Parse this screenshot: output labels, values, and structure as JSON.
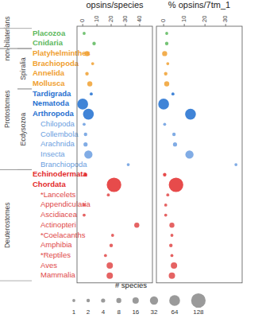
{
  "chart_data": {
    "type": "dot",
    "orientation": "horizontal",
    "categories": [
      "Placozoa",
      "Cnidaria",
      "Platyhelminthes",
      "Brachiopoda",
      "Annelida",
      "Mollusca",
      "Tardigrada",
      "Nematoda",
      "Arthropoda",
      "Chilopoda",
      "Collembola",
      "Arachnida",
      "Insecta",
      "Branchiopoda",
      "Echinodermata",
      "Chordata",
      "*Lancelets",
      "Appendicularia",
      "Ascidiacea",
      "Actinopteri",
      "*Coelacanths",
      "Amphibia",
      "*Reptiles",
      "Aves",
      "Mammalia"
    ],
    "colors": [
      "#5cb85c",
      "#5cb85c",
      "#f0a030",
      "#f0a030",
      "#f0a030",
      "#f0a030",
      "#1f6fd0",
      "#1f6fd0",
      "#1f6fd0",
      "#6b9ee0",
      "#6b9ee0",
      "#6b9ee0",
      "#6b9ee0",
      "#6b9ee0",
      "#e32b2b",
      "#e32b2b",
      "#e04848",
      "#e04848",
      "#e04848",
      "#e04848",
      "#e04848",
      "#e04848",
      "#e04848",
      "#e04848",
      "#e04848"
    ],
    "sizes": [
      1,
      2,
      8,
      1,
      2,
      8,
      1,
      64,
      64,
      1,
      2,
      4,
      32,
      1,
      2,
      128,
      1,
      1,
      1,
      8,
      1,
      2,
      1,
      16,
      16
    ],
    "groups": [
      {
        "name": "non-bilaterians",
        "first": "Placozoa",
        "last": "Cnidaria",
        "color": "#5cb85c"
      },
      {
        "name": "Spiralia",
        "first": "Platyhelminthes",
        "last": "Mollusca",
        "color": "#f0a030"
      },
      {
        "name": "Ecdysozoa",
        "first": "Tardigrada",
        "last": "Branchiopoda",
        "color": "#1f6fd0"
      },
      {
        "name": "Protostomes",
        "first": "Platyhelminthes",
        "last": "Branchiopoda",
        "color": "#1f6fd0"
      },
      {
        "name": "Deuterostomes",
        "first": "Echinodermata",
        "last": "Mammalia",
        "color": "#e32b2b"
      }
    ],
    "series": [
      {
        "name": "opsins/species",
        "xlim": [
          -4,
          49
        ],
        "xticks": [
          0,
          10,
          20,
          30,
          40
        ],
        "values": [
          1,
          8,
          3,
          7,
          3,
          5,
          6,
          0,
          4,
          1,
          2,
          2,
          4,
          32,
          2,
          22,
          18,
          1,
          1,
          38,
          21,
          20,
          16,
          19,
          19
        ]
      },
      {
        "name": "% opsins/7tm_1",
        "xlim": [
          -3.5,
          38
        ],
        "xticks": [
          0,
          10,
          20,
          30
        ],
        "values": [
          1.5,
          1.5,
          0.5,
          2,
          1,
          1.5,
          4.5,
          0,
          13,
          0.5,
          5,
          5.5,
          12.5,
          35,
          0.5,
          6,
          2,
          1,
          1,
          4,
          4,
          3.5,
          4,
          5,
          4
        ]
      }
    ],
    "size_legend": {
      "title": "# species",
      "values": [
        1,
        2,
        4,
        8,
        16,
        32,
        64,
        128
      ]
    }
  }
}
